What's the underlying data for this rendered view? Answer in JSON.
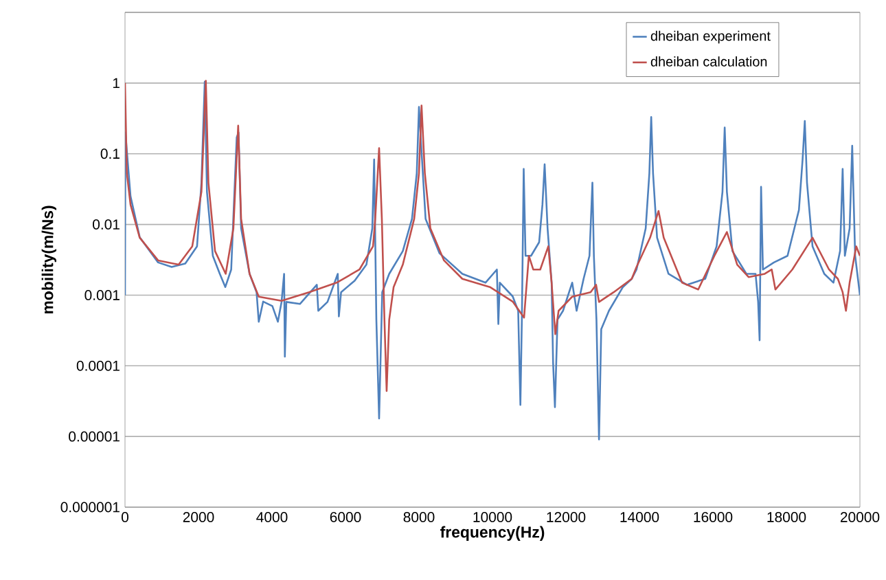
{
  "chart_data": {
    "type": "line",
    "xlabel": "**frequency(Hz)**",
    "ylabel": "**mobility(m/Ns)**",
    "log": "y",
    "grid": "y",
    "legend": "top right",
    "marker": "none",
    "line_style": "solid",
    "xlim": [
      0,
      20000
    ],
    "xticks": [
      0,
      2000,
      4000,
      6000,
      8000,
      10000,
      12000,
      14000,
      16000,
      18000,
      20000
    ],
    "ylim": [
      1e-06,
      10
    ],
    "yticks": [
      {
        "value": 1e-06,
        "label": "0.000001"
      },
      {
        "value": 1e-05,
        "label": "0.00001"
      },
      {
        "value": 0.0001,
        "label": "0.0001"
      },
      {
        "value": 0.001,
        "label": "0.001"
      },
      {
        "value": 0.01,
        "label": "0.01"
      },
      {
        "value": 0.1,
        "label": "0.1"
      },
      {
        "value": 1,
        "label": "1"
      },
      {
        "value": 10,
        "label": null
      }
    ],
    "series": [
      {
        "name": "dheiban experiment",
        "color": "#4f81bd",
        "x": [
          0,
          10,
          150,
          400,
          900,
          1270,
          1640,
          1960,
          2080,
          2170,
          2230,
          2390,
          2580,
          2730,
          2890,
          3040,
          3090,
          3160,
          3390,
          3580,
          3640,
          3760,
          4010,
          4160,
          4260,
          4330,
          4350,
          4390,
          4760,
          5220,
          5260,
          5510,
          5790,
          5820,
          5880,
          6250,
          6570,
          6730,
          6780,
          6840,
          6915,
          7000,
          7190,
          7560,
          7810,
          7940,
          8000,
          8060,
          8180,
          8560,
          9180,
          9810,
          10120,
          10160,
          10200,
          10550,
          10700,
          10760,
          10800,
          10850,
          10900,
          11050,
          11270,
          11360,
          11420,
          11500,
          11610,
          11650,
          11700,
          11770,
          11920,
          12170,
          12290,
          12480,
          12640,
          12720,
          12760,
          12830,
          12900,
          12960,
          13170,
          13550,
          13790,
          13920,
          14170,
          14270,
          14320,
          14370,
          14480,
          14790,
          15290,
          15790,
          16100,
          16260,
          16320,
          16380,
          16530,
          16910,
          17160,
          17230,
          17270,
          17310,
          17360,
          17660,
          18030,
          18340,
          18440,
          18500,
          18560,
          18710,
          19030,
          19280,
          19460,
          19530,
          19590,
          19720,
          19790,
          19870,
          20000
        ],
        "values": [
          0.001,
          0.2,
          0.025,
          0.0066,
          0.0029,
          0.0025,
          0.0028,
          0.0049,
          0.039,
          1.05,
          0.029,
          0.0036,
          0.002,
          0.0013,
          0.0023,
          0.17,
          0.2,
          0.0088,
          0.002,
          0.0011,
          0.00042,
          0.00081,
          0.0007,
          0.00042,
          0.0008,
          0.002,
          0.000135,
          0.0008,
          0.00075,
          0.0014,
          0.0006,
          0.0008,
          0.002,
          0.0005,
          0.0011,
          0.0016,
          0.0027,
          0.0088,
          0.083,
          0.00045,
          1.8e-05,
          0.0011,
          0.002,
          0.0042,
          0.012,
          0.053,
          0.46,
          0.13,
          0.012,
          0.0039,
          0.002,
          0.0015,
          0.0023,
          0.00039,
          0.0015,
          0.00096,
          0.0006,
          2.8e-05,
          0.00045,
          0.061,
          0.0036,
          0.0036,
          0.0056,
          0.019,
          0.071,
          0.0088,
          0.0015,
          0.00011,
          2.6e-05,
          0.00045,
          0.0006,
          0.0015,
          0.0006,
          0.0017,
          0.0036,
          0.039,
          0.0036,
          0.00045,
          9.1e-06,
          0.00033,
          0.0006,
          0.0013,
          0.0017,
          0.0023,
          0.0088,
          0.053,
          0.33,
          0.053,
          0.0065,
          0.002,
          0.0014,
          0.0017,
          0.0049,
          0.029,
          0.235,
          0.029,
          0.0042,
          0.002,
          0.002,
          0.0008,
          0.00023,
          0.034,
          0.0023,
          0.0029,
          0.0036,
          0.016,
          0.083,
          0.29,
          0.039,
          0.0049,
          0.002,
          0.0015,
          0.0042,
          0.061,
          0.0036,
          0.0088,
          0.13,
          0.0036,
          0.001
        ]
      },
      {
        "name": "dheiban calculation",
        "color": "#c0504d",
        "x": [
          0,
          50,
          150,
          400,
          900,
          1460,
          1830,
          2080,
          2200,
          2270,
          2450,
          2740,
          2950,
          3080,
          3160,
          3390,
          3640,
          4260,
          5010,
          5760,
          6380,
          6750,
          6810,
          6915,
          6990,
          7060,
          7120,
          7190,
          7310,
          7560,
          7870,
          8000,
          8070,
          8160,
          8310,
          8680,
          9180,
          9930,
          10550,
          10860,
          10990,
          11110,
          11300,
          11520,
          11610,
          11710,
          11800,
          12170,
          12670,
          12820,
          12900,
          13300,
          13790,
          13920,
          14290,
          14520,
          14660,
          15160,
          15600,
          16040,
          16380,
          16660,
          16970,
          17410,
          17600,
          17700,
          18160,
          18710,
          19160,
          19400,
          19530,
          19620,
          19720,
          19900,
          20000
        ],
        "values": [
          1,
          0.053,
          0.019,
          0.0065,
          0.0031,
          0.0027,
          0.0049,
          0.029,
          1.08,
          0.039,
          0.0042,
          0.002,
          0.0088,
          0.25,
          0.012,
          0.002,
          0.00095,
          0.00083,
          0.0011,
          0.0015,
          0.0023,
          0.0049,
          0.012,
          0.12,
          0.012,
          0.00045,
          4.4e-05,
          0.00045,
          0.0013,
          0.0027,
          0.012,
          0.053,
          0.48,
          0.053,
          0.0088,
          0.0031,
          0.0017,
          0.0013,
          0.00081,
          0.00048,
          0.0036,
          0.0023,
          0.0023,
          0.0049,
          0.0015,
          0.00028,
          0.0006,
          0.00095,
          0.0011,
          0.0014,
          0.0008,
          0.0011,
          0.0017,
          0.0025,
          0.0065,
          0.0155,
          0.0065,
          0.0015,
          0.0012,
          0.0036,
          0.0078,
          0.0027,
          0.0018,
          0.002,
          0.0023,
          0.0012,
          0.0023,
          0.0065,
          0.0023,
          0.0017,
          0.0011,
          0.0006,
          0.0015,
          0.0049,
          0.0036
        ]
      }
    ]
  }
}
